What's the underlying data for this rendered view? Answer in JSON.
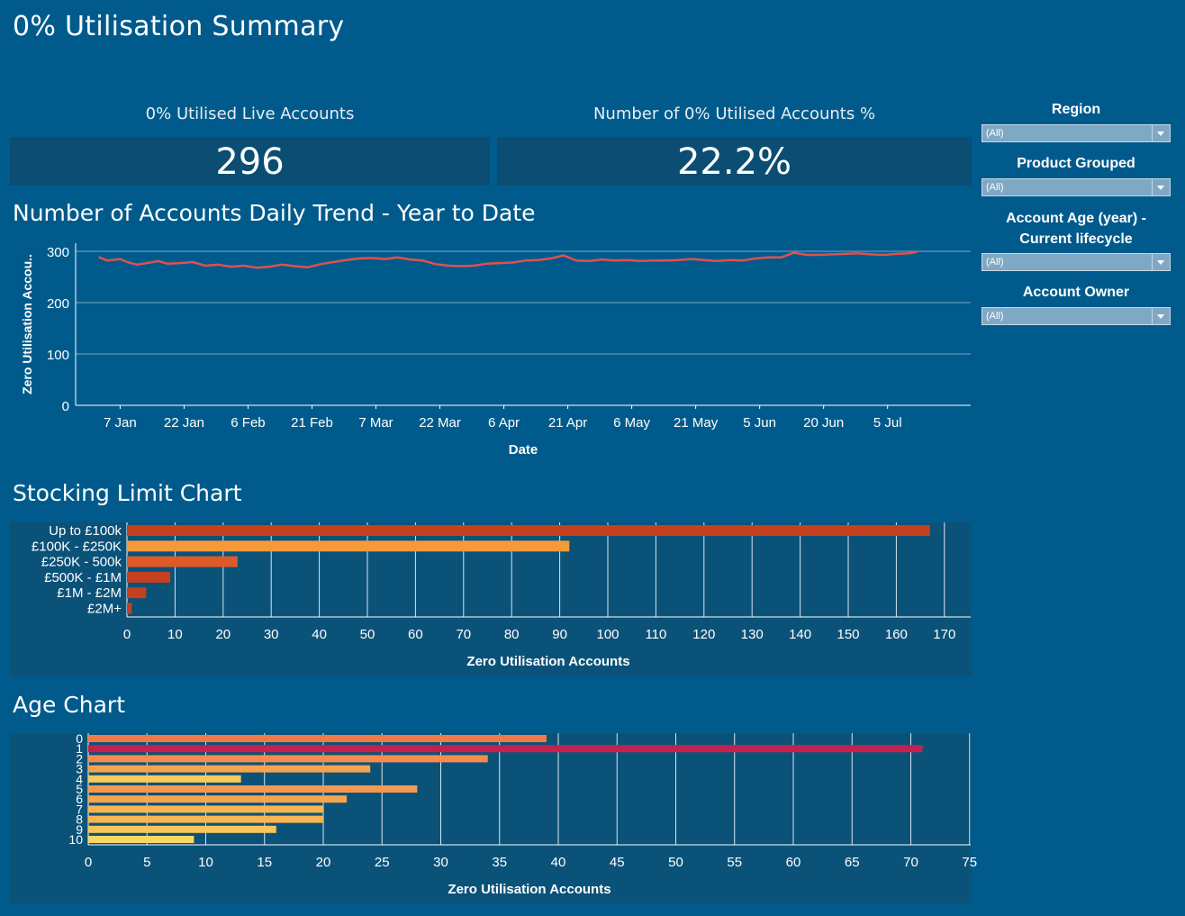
{
  "page": {
    "title": "0% Utilisation Summary"
  },
  "kpis": [
    {
      "title": "0% Utilised Live Accounts",
      "value": "296"
    },
    {
      "title": "Number of 0% Utilised Accounts %",
      "value": "22.2%"
    }
  ],
  "filters": [
    {
      "label": "Region",
      "value": "(All)"
    },
    {
      "label": "Product Grouped",
      "value": "(All)"
    },
    {
      "label_line1": "Account Age (year) -",
      "label_line2": "Current lifecycle",
      "value": "(All)"
    },
    {
      "label": "Account Owner",
      "value": "(All)"
    }
  ],
  "colors": {
    "background": "#005b8c",
    "panel": "#0b5279",
    "trend_line": "#e0504f",
    "grid": "#7aa6c2"
  },
  "chart_data": [
    {
      "type": "line",
      "title": "Number of Accounts Daily Trend - Year to Date",
      "xlabel": "Date",
      "ylabel": "Zero Utilisation Accou..",
      "ylim": [
        0,
        320
      ],
      "yticks": [
        0,
        100,
        200,
        300
      ],
      "x_tick_labels": [
        "7 Jan",
        "22 Jan",
        "6 Feb",
        "21 Feb",
        "7 Mar",
        "22 Mar",
        "6 Apr",
        "21 Apr",
        "6 May",
        "21 May",
        "5 Jun",
        "20 Jun",
        "5 Jul"
      ],
      "series": [
        {
          "points": [
            [
              "2024-01-02",
              289
            ],
            [
              "2024-01-04",
              282
            ],
            [
              "2024-01-07",
              285
            ],
            [
              "2024-01-09",
              278
            ],
            [
              "2024-01-11",
              274
            ],
            [
              "2024-01-14",
              278
            ],
            [
              "2024-01-16",
              281
            ],
            [
              "2024-01-18",
              276
            ],
            [
              "2024-01-21",
              277
            ],
            [
              "2024-01-24",
              279
            ],
            [
              "2024-01-27",
              272
            ],
            [
              "2024-01-30",
              274
            ],
            [
              "2024-02-02",
              270
            ],
            [
              "2024-02-05",
              272
            ],
            [
              "2024-02-08",
              268
            ],
            [
              "2024-02-11",
              270
            ],
            [
              "2024-02-14",
              274
            ],
            [
              "2024-02-17",
              271
            ],
            [
              "2024-02-20",
              269
            ],
            [
              "2024-02-23",
              275
            ],
            [
              "2024-02-26",
              279
            ],
            [
              "2024-02-29",
              283
            ],
            [
              "2024-03-03",
              286
            ],
            [
              "2024-03-06",
              287
            ],
            [
              "2024-03-09",
              285
            ],
            [
              "2024-03-12",
              288
            ],
            [
              "2024-03-15",
              284
            ],
            [
              "2024-03-18",
              282
            ],
            [
              "2024-03-21",
              275
            ],
            [
              "2024-03-24",
              272
            ],
            [
              "2024-03-27",
              271
            ],
            [
              "2024-03-30",
              272
            ],
            [
              "2024-04-02",
              276
            ],
            [
              "2024-04-05",
              277
            ],
            [
              "2024-04-08",
              278
            ],
            [
              "2024-04-11",
              282
            ],
            [
              "2024-04-14",
              283
            ],
            [
              "2024-04-17",
              286
            ],
            [
              "2024-04-20",
              292
            ],
            [
              "2024-04-23",
              282
            ],
            [
              "2024-04-26",
              281
            ],
            [
              "2024-04-29",
              284
            ],
            [
              "2024-05-02",
              282
            ],
            [
              "2024-05-05",
              283
            ],
            [
              "2024-05-08",
              281
            ],
            [
              "2024-05-11",
              282
            ],
            [
              "2024-05-14",
              282
            ],
            [
              "2024-05-17",
              283
            ],
            [
              "2024-05-20",
              285
            ],
            [
              "2024-05-23",
              283
            ],
            [
              "2024-05-26",
              281
            ],
            [
              "2024-05-29",
              283
            ],
            [
              "2024-06-01",
              282
            ],
            [
              "2024-06-04",
              286
            ],
            [
              "2024-06-07",
              288
            ],
            [
              "2024-06-10",
              288
            ],
            [
              "2024-06-13",
              297
            ],
            [
              "2024-06-16",
              293
            ],
            [
              "2024-06-19",
              293
            ],
            [
              "2024-06-22",
              294
            ],
            [
              "2024-06-25",
              295
            ],
            [
              "2024-06-28",
              296
            ],
            [
              "2024-07-01",
              294
            ],
            [
              "2024-07-04",
              293
            ],
            [
              "2024-07-07",
              295
            ],
            [
              "2024-07-10",
              296
            ],
            [
              "2024-07-12",
              299
            ]
          ]
        }
      ]
    },
    {
      "type": "bar",
      "orientation": "horizontal",
      "title": "Stocking Limit Chart",
      "xlabel": "Zero Utilisation Accounts",
      "xlim": [
        0,
        175
      ],
      "xticks": [
        0,
        10,
        20,
        30,
        40,
        50,
        60,
        70,
        80,
        90,
        100,
        110,
        120,
        130,
        140,
        150,
        160,
        170
      ],
      "categories": [
        "Up to £100k",
        "£100K - £250K",
        "£250K - 500k",
        "£500K - £1M",
        "£1M - £2M",
        "£2M+"
      ],
      "values": [
        167,
        92,
        23,
        9,
        4,
        1
      ],
      "colors": [
        "#c5401f",
        "#f59a3b",
        "#df5a26",
        "#c5401f",
        "#c5401f",
        "#c5401f"
      ]
    },
    {
      "type": "bar",
      "orientation": "horizontal",
      "title": "Age Chart",
      "xlabel": "Zero Utilisation Accounts",
      "xlim": [
        0,
        75
      ],
      "xticks": [
        0,
        5,
        10,
        15,
        20,
        25,
        30,
        35,
        40,
        45,
        50,
        55,
        60,
        65,
        70,
        75
      ],
      "categories": [
        "0",
        "1",
        "2",
        "3",
        "4",
        "5",
        "6",
        "7",
        "8",
        "9",
        "10"
      ],
      "values": [
        39,
        71,
        34,
        24,
        13,
        28,
        22,
        20,
        20,
        16,
        9
      ],
      "colors": [
        "#f07b46",
        "#c6204d",
        "#f48c4e",
        "#f6a34e",
        "#f9cb5c",
        "#f4994e",
        "#f6a54f",
        "#f8b552",
        "#f8b552",
        "#f9c458",
        "#f8d862"
      ]
    }
  ]
}
